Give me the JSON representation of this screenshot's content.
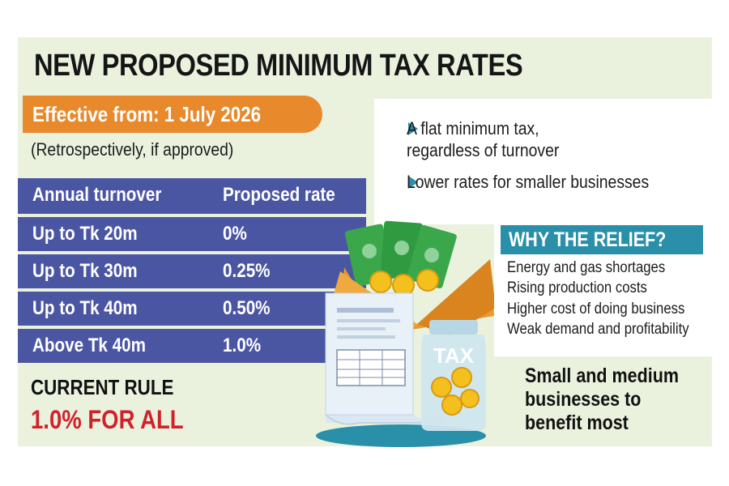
{
  "title": "NEW PROPOSED MINIMUM TAX RATES",
  "effective": "Effective from: 1 July 2026",
  "retro": "(Retrospectively, if approved)",
  "table": {
    "headers": [
      "Annual turnover",
      "Proposed rate"
    ],
    "rows": [
      {
        "turnover": "Up to Tk 20m",
        "rate": "0%"
      },
      {
        "turnover": "Up to Tk 30m",
        "rate": "0.25%"
      },
      {
        "turnover": "Up to Tk 40m",
        "rate": "0.50%"
      },
      {
        "turnover": "Above Tk 40m",
        "rate": "1.0%"
      }
    ]
  },
  "current_rule": {
    "label": "CURRENT RULE",
    "value": "1.0% FOR ALL"
  },
  "notes": {
    "item1_line1": "A flat minimum tax,",
    "item1_line2": "regardless of turnover",
    "item2": "Lower rates for smaller businesses"
  },
  "why": {
    "heading": "WHY THE RELIEF?",
    "items": [
      "Energy and gas shortages",
      "Rising production costs",
      "Higher cost of doing business",
      "Weak demand and profitability"
    ]
  },
  "sme": {
    "line1": "Small and medium",
    "line2": "businesses to",
    "line3": "benefit most"
  },
  "illustration": {
    "jar_label": "TAX"
  },
  "colors": {
    "panel": "#eaf2de",
    "orange": "#e8892b",
    "table_blue": "#4b56a3",
    "teal": "#2a8fa8",
    "red": "#d1222b"
  }
}
